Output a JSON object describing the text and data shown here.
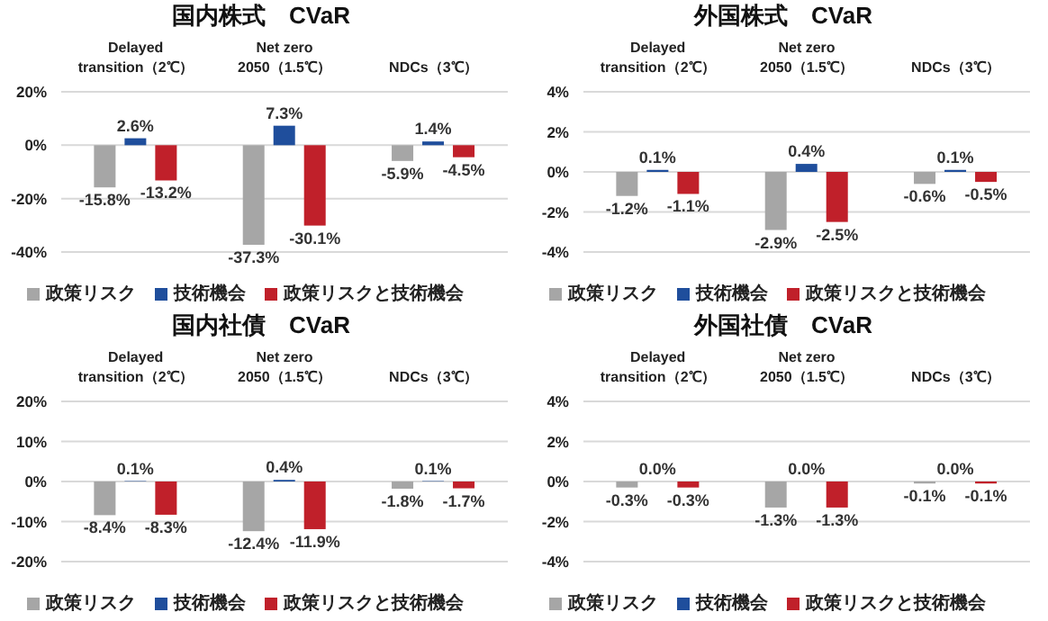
{
  "chart_data": [
    {
      "type": "bar",
      "title": "国内株式　CVaR",
      "categories": [
        "Delayed\ntransition（2℃）",
        "Net zero\n2050（1.5℃）",
        "NDCs（3℃）"
      ],
      "ylim": [
        -40,
        20
      ],
      "yticks": [
        {
          "value": -40,
          "label": "-40%"
        },
        {
          "value": -20,
          "label": "-20%"
        },
        {
          "value": 0,
          "label": "0%"
        },
        {
          "value": 20,
          "label": "20%"
        }
      ],
      "grid": "y",
      "legend": "bottom",
      "series": [
        {
          "name": "政策リスク",
          "color": "#a6a6a6",
          "values": [
            -15.8,
            -37.3,
            -5.9
          ],
          "value_labels": [
            "-15.8%",
            "-37.3%",
            "-5.9%"
          ]
        },
        {
          "name": "技術機会",
          "color": "#1f4e9c",
          "values": [
            2.6,
            7.3,
            1.4
          ],
          "value_labels": [
            "2.6%",
            "7.3%",
            "1.4%"
          ]
        },
        {
          "name": "政策リスクと技術機会",
          "color": "#c0202a",
          "values": [
            -13.2,
            -30.1,
            -4.5
          ],
          "value_labels": [
            "-13.2%",
            "-30.1%",
            "-4.5%"
          ]
        }
      ]
    },
    {
      "type": "bar",
      "title": "外国株式　CVaR",
      "categories": [
        "Delayed\ntransition（2℃）",
        "Net zero\n2050（1.5℃）",
        "NDCs（3℃）"
      ],
      "ylim": [
        -4,
        4
      ],
      "yticks": [
        {
          "value": -4,
          "label": "-4%"
        },
        {
          "value": -2,
          "label": "-2%"
        },
        {
          "value": 0,
          "label": "0%"
        },
        {
          "value": 2,
          "label": "2%"
        },
        {
          "value": 4,
          "label": "4%"
        }
      ],
      "grid": "y",
      "legend": "bottom",
      "series": [
        {
          "name": "政策リスク",
          "color": "#a6a6a6",
          "values": [
            -1.2,
            -2.9,
            -0.6
          ],
          "value_labels": [
            "-1.2%",
            "-2.9%",
            "-0.6%"
          ]
        },
        {
          "name": "技術機会",
          "color": "#1f4e9c",
          "values": [
            0.1,
            0.4,
            0.1
          ],
          "value_labels": [
            "0.1%",
            "0.4%",
            "0.1%"
          ]
        },
        {
          "name": "政策リスクと技術機会",
          "color": "#c0202a",
          "values": [
            -1.1,
            -2.5,
            -0.5
          ],
          "value_labels": [
            "-1.1%",
            "-2.5%",
            "-0.5%"
          ]
        }
      ]
    },
    {
      "type": "bar",
      "title": "国内社債　CVaR",
      "categories": [
        "Delayed\ntransition（2℃）",
        "Net zero\n2050（1.5℃）",
        "NDCs（3℃）"
      ],
      "ylim": [
        -20,
        20
      ],
      "yticks": [
        {
          "value": -20,
          "label": "-20%"
        },
        {
          "value": -10,
          "label": "-10%"
        },
        {
          "value": 0,
          "label": "0%"
        },
        {
          "value": 10,
          "label": "10%"
        },
        {
          "value": 20,
          "label": "20%"
        }
      ],
      "grid": "y",
      "legend": "bottom",
      "series": [
        {
          "name": "政策リスク",
          "color": "#a6a6a6",
          "values": [
            -8.4,
            -12.4,
            -1.8
          ],
          "value_labels": [
            "-8.4%",
            "-12.4%",
            "-1.8%"
          ]
        },
        {
          "name": "技術機会",
          "color": "#1f4e9c",
          "values": [
            0.1,
            0.4,
            0.1
          ],
          "value_labels": [
            "0.1%",
            "0.4%",
            "0.1%"
          ]
        },
        {
          "name": "政策リスクと技術機会",
          "color": "#c0202a",
          "values": [
            -8.3,
            -11.9,
            -1.7
          ],
          "value_labels": [
            "-8.3%",
            "-11.9%",
            "-1.7%"
          ]
        }
      ]
    },
    {
      "type": "bar",
      "title": "外国社債　CVaR",
      "categories": [
        "Delayed\ntransition（2℃）",
        "Net zero\n2050（1.5℃）",
        "NDCs（3℃）"
      ],
      "ylim": [
        -4,
        4
      ],
      "yticks": [
        {
          "value": -4,
          "label": "-4%"
        },
        {
          "value": -2,
          "label": "-2%"
        },
        {
          "value": 0,
          "label": "0%"
        },
        {
          "value": 2,
          "label": "2%"
        },
        {
          "value": 4,
          "label": "4%"
        }
      ],
      "grid": "y",
      "legend": "bottom",
      "series": [
        {
          "name": "政策リスク",
          "color": "#a6a6a6",
          "values": [
            -0.3,
            -1.3,
            -0.1
          ],
          "value_labels": [
            "-0.3%",
            "-1.3%",
            "-0.1%"
          ]
        },
        {
          "name": "技術機会",
          "color": "#1f4e9c",
          "values": [
            0.0,
            0.0,
            0.0
          ],
          "value_labels": [
            "0.0%",
            "0.0%",
            "0.0%"
          ]
        },
        {
          "name": "政策リスクと技術機会",
          "color": "#c0202a",
          "values": [
            -0.3,
            -1.3,
            -0.1
          ],
          "value_labels": [
            "-0.3%",
            "-1.3%",
            "-0.1%"
          ]
        }
      ]
    }
  ]
}
